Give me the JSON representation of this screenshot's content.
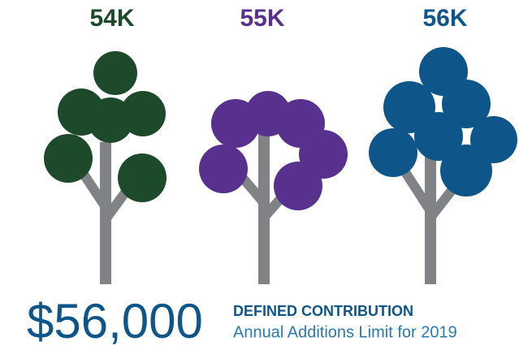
{
  "trees": [
    {
      "label": "54K",
      "color": "#1d4a2a"
    },
    {
      "label": "55K",
      "color": "#58318f"
    },
    {
      "label": "56K",
      "color": "#0e5689"
    }
  ],
  "trunk_color": "#808285",
  "amount": "$56,000",
  "heading": "DEFINED CONTRIBUTION",
  "subheading": "Annual Additions Limit for 2019"
}
